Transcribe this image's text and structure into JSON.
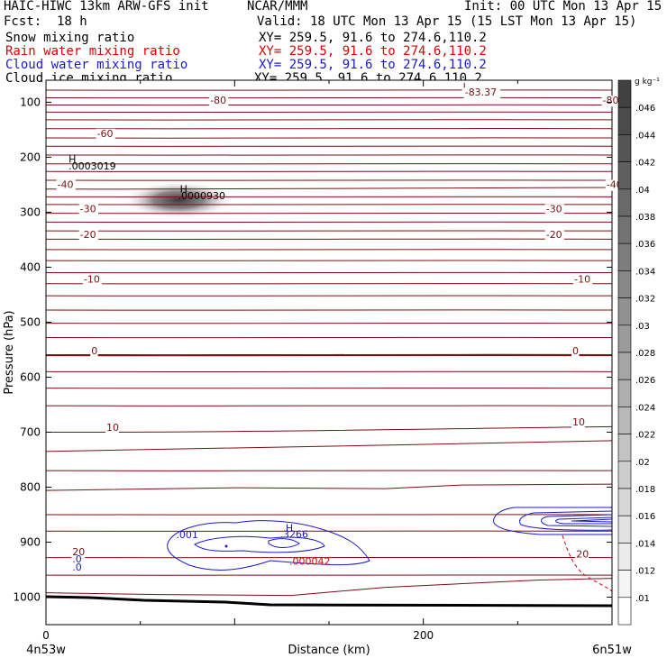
{
  "header": {
    "model_title": "HAIC-HIWC 13km ARW-GFS init",
    "org": "NCAR/MMM",
    "init_time": "Init: 00 UTC Mon 13 Apr 15",
    "fcst_label": "Fcst:",
    "fcst_value": "18 h",
    "valid_time": "Valid: 18 UTC Mon 13 Apr 15 (15 LST Mon 13 Apr 15)"
  },
  "fields": [
    {
      "name": "Snow mixing ratio",
      "xy": "XY= 259.5, 91.6 to 274.6,110.2",
      "color": "#000000"
    },
    {
      "name": "Rain water mixing ratio",
      "xy": "XY= 259.5, 91.6 to 274.6,110.2",
      "color": "#e00000"
    },
    {
      "name": "Cloud water mixing ratio",
      "xy": "XY= 259.5, 91.6 to 274.6,110.2",
      "color": "#1a1acc"
    },
    {
      "name": "Cloud ice mixing ratio",
      "xy": "XY= 259.5, 91.6 to 274.6,110.2",
      "color": "#000000"
    }
  ],
  "chart_data": {
    "type": "heatmap",
    "xlabel": "Distance (km)",
    "ylabel": "Pressure (hPa)",
    "xlim": [
      0,
      300
    ],
    "ylim": [
      1050,
      60
    ],
    "x_ticks": [
      0,
      200
    ],
    "y_ticks": [
      100,
      200,
      300,
      400,
      500,
      600,
      700,
      800,
      900,
      1000
    ],
    "x_endpoints": {
      "left": "4n53w",
      "right": "6n51w"
    },
    "colorbar": {
      "units": "g kg⁻¹",
      "levels": [
        ".046",
        ".044",
        ".042",
        ".04",
        ".038",
        ".036",
        ".034",
        ".032",
        ".03",
        ".028",
        ".026",
        ".024",
        ".022",
        ".02",
        ".018",
        ".016",
        ".014",
        ".012",
        ".01"
      ],
      "level_values": [
        0.046,
        0.044,
        0.042,
        0.04,
        0.038,
        0.036,
        0.034,
        0.032,
        0.03,
        0.028,
        0.026,
        0.024,
        0.022,
        0.02,
        0.018,
        0.016,
        0.014,
        0.012,
        0.01
      ]
    },
    "temperature_contours": [
      {
        "label": "-80",
        "left_p": 105,
        "right_p": 105
      },
      {
        "label": "-60",
        "left_p": 165,
        "right_p": 165
      },
      {
        "label": "-40",
        "left_p": 258,
        "right_p": 255
      },
      {
        "label": "-30",
        "left_p": 302,
        "right_p": 302
      },
      {
        "label": "-20",
        "left_p": 349,
        "right_p": 349
      },
      {
        "label": "-10",
        "left_p": 430,
        "right_p": 430
      },
      {
        "label": "0",
        "left_p": 560,
        "right_p": 560
      },
      {
        "label": "10",
        "left_p": 700,
        "right_p": 690
      },
      {
        "label": "20",
        "left_p": 928,
        "right_p": 928
      }
    ],
    "annotations": [
      {
        "text": "-80",
        "x": 87,
        "p": 103
      },
      {
        "text": "-80",
        "x": 295,
        "p": 103
      },
      {
        "text": "-60",
        "x": 27,
        "p": 163
      },
      {
        "text": "-40",
        "x": 6,
        "p": 256
      },
      {
        "text": "-40",
        "x": 297,
        "p": 256
      },
      {
        "text": "-30",
        "x": 18,
        "p": 300
      },
      {
        "text": "-30",
        "x": 265,
        "p": 300
      },
      {
        "text": "-20",
        "x": 18,
        "p": 347
      },
      {
        "text": "-20",
        "x": 265,
        "p": 347
      },
      {
        "text": "-10",
        "x": 20,
        "p": 428
      },
      {
        "text": "-10",
        "x": 280,
        "p": 428
      },
      {
        "text": "0",
        "x": 24,
        "p": 558
      },
      {
        "text": "0",
        "x": 279,
        "p": 558
      },
      {
        "text": "10",
        "x": 32,
        "p": 698
      },
      {
        "text": "10",
        "x": 279,
        "p": 688
      },
      {
        "text": "20",
        "x": 281,
        "p": 928
      },
      {
        "text": "L",
        "x": 221,
        "p": 78
      },
      {
        "text": "-83.37",
        "x": 222,
        "p": 88
      },
      {
        "text": "H",
        "x": 12,
        "p": 210
      },
      {
        "text": ".0003019",
        "x": 12,
        "p": 222
      },
      {
        "text": "H",
        "x": 71,
        "p": 264
      },
      {
        "text": ".0000930",
        "x": 70,
        "p": 276
      },
      {
        "text": ".001",
        "x": 69,
        "p": 893
      },
      {
        "text": "H",
        "x": 127,
        "p": 880
      },
      {
        "text": ".3266",
        "x": 124,
        "p": 892
      },
      {
        "text": ".000042",
        "x": 129,
        "p": 941
      },
      {
        "text": "20",
        "x": 14,
        "p": 924
      },
      {
        "text": ".0",
        "x": 14,
        "p": 937
      },
      {
        "text": ".0",
        "x": 14,
        "p": 952
      }
    ]
  }
}
